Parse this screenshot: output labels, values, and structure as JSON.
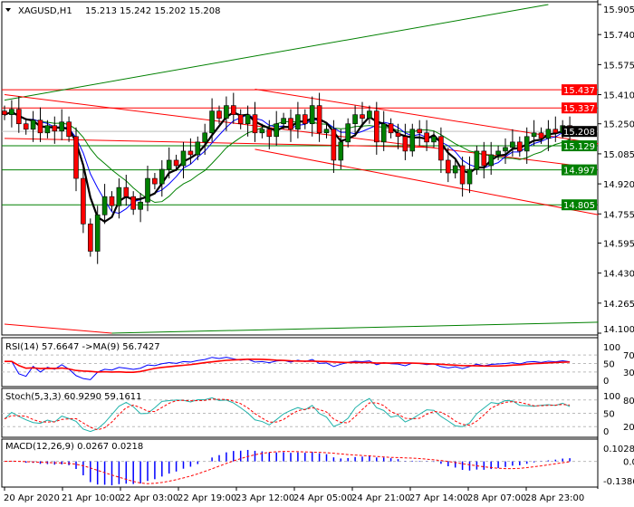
{
  "header": {
    "symbol": "XAGUSD,H1",
    "ohlc": "15.213 15.242 15.202 15.208"
  },
  "colors": {
    "bull": "#008000",
    "bear": "#ff0000",
    "ma_fast": "#000000",
    "ma_mid": "#0000ff",
    "ma_slow": "#008000",
    "rsi": "#0000ff",
    "rsi_ma": "#ff0000",
    "stoch_main": "#20b2aa",
    "stoch_signal": "#ff0000",
    "macd_hist": "#0000ff",
    "macd_signal": "#ff0000"
  },
  "chart_data": [
    {
      "type": "candlestick",
      "title": "XAGUSD,H1",
      "ylim": [
        14.1,
        15.905
      ],
      "y_ticks": [
        "15.905",
        "15.740",
        "15.575",
        "15.410",
        "15.250",
        "15.085",
        "14.920",
        "14.755",
        "14.595",
        "14.430",
        "14.265",
        "14.100"
      ],
      "x_tick_labels": [
        "20 Apr 2020",
        "21 Apr 10:00",
        "22 Apr 03:00",
        "22 Apr 19:00",
        "23 Apr 12:00",
        "24 Apr 05:00",
        "24 Apr 21:00",
        "27 Apr 14:00",
        "28 Apr 07:00",
        "28 Apr 23:00"
      ],
      "close": [
        15.3,
        15.33,
        15.25,
        15.22,
        15.27,
        15.2,
        15.24,
        15.21,
        15.26,
        15.18,
        14.95,
        14.7,
        14.55,
        14.75,
        14.85,
        14.8,
        14.9,
        14.85,
        14.78,
        14.82,
        14.95,
        14.92,
        15.0,
        15.05,
        15.02,
        15.1,
        15.08,
        15.15,
        15.2,
        15.32,
        15.28,
        15.35,
        15.3,
        15.25,
        15.3,
        15.2,
        15.22,
        15.18,
        15.25,
        15.28,
        15.22,
        15.3,
        15.25,
        15.35,
        15.2,
        15.22,
        15.05,
        15.15,
        15.25,
        15.3,
        15.28,
        15.32,
        15.15,
        15.25,
        15.2,
        15.18,
        15.1,
        15.22,
        15.2,
        15.15,
        15.18,
        15.05,
        14.98,
        15.02,
        14.92,
        15.0,
        15.1,
        15.02,
        15.08,
        15.1,
        15.12,
        15.15,
        15.1,
        15.18,
        15.2,
        15.17,
        15.22,
        15.2,
        15.24,
        15.208
      ],
      "price_labels": [
        {
          "value": "15.437",
          "color": "#ff0000"
        },
        {
          "value": "15.337",
          "color": "#ff0000"
        },
        {
          "value": "15.208",
          "color": "#000000"
        },
        {
          "value": "15.129",
          "color": "#008000"
        },
        {
          "value": "14.997",
          "color": "#008000"
        },
        {
          "value": "14.805",
          "color": "#008000"
        }
      ],
      "trendlines": [
        {
          "color": "#008000",
          "from": [
            0,
            15.38
          ],
          "to": [
            76,
            15.905
          ]
        },
        {
          "color": "#ff0000",
          "from": [
            0,
            15.41
          ],
          "to": [
            82,
            15.01
          ]
        },
        {
          "color": "#ff0000",
          "from": [
            35,
            15.44
          ],
          "to": [
            83,
            15.14
          ]
        },
        {
          "color": "#ff0000",
          "from": [
            35,
            15.11
          ],
          "to": [
            83,
            14.75
          ]
        },
        {
          "color": "#ff0000",
          "from": [
            0,
            15.17
          ],
          "to": [
            60,
            15.12
          ]
        },
        {
          "color": "#ff0000",
          "from": [
            0,
            14.15
          ],
          "to": [
            15,
            14.1
          ]
        },
        {
          "color": "#008000",
          "from": [
            15,
            14.1
          ],
          "to": [
            83,
            14.16
          ]
        }
      ]
    },
    {
      "type": "line",
      "title": "RSI(14) 57.6647  ->MA(9) 56.7427",
      "y_ticks": [
        "100",
        "70",
        "50",
        "30",
        "0"
      ],
      "ylim": [
        0,
        100
      ]
    },
    {
      "type": "line",
      "title": "Stoch(5,3,3) 60.9290 59.1611",
      "y_ticks": [
        "100",
        "80",
        "50",
        "20",
        "0"
      ],
      "ylim": [
        0,
        100
      ]
    },
    {
      "type": "bar",
      "title": "MACD(12,26,9) 0.0267 0.0218",
      "y_ticks": [
        "0.1028",
        "0.00",
        "-0.1386"
      ],
      "ylim": [
        -0.1386,
        0.1028
      ]
    }
  ]
}
